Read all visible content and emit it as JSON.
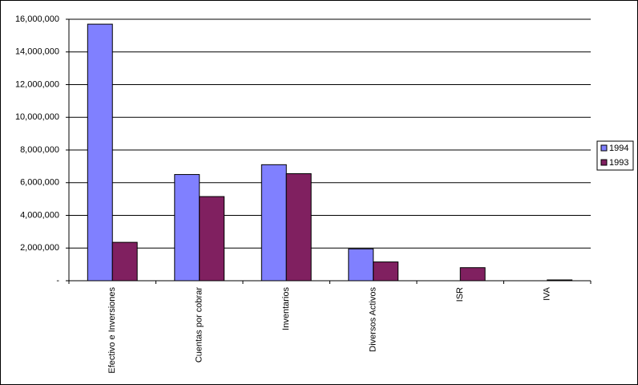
{
  "chart_data": {
    "type": "bar",
    "categories": [
      "Efectivo e Inversiones",
      "Cuentas por cobrar",
      "Inventarios",
      "Diversos Activos",
      "ISR",
      "IVA"
    ],
    "series": [
      {
        "name": "1994",
        "color": "#8080ff",
        "values": [
          15700000,
          6500000,
          7100000,
          1950000,
          0,
          0
        ]
      },
      {
        "name": "1993",
        "color": "#802060",
        "values": [
          2350000,
          5150000,
          6550000,
          1150000,
          800000,
          50000
        ]
      }
    ],
    "ylim": [
      0,
      16000000
    ],
    "yticks": [
      {
        "value": 0,
        "label": "-"
      },
      {
        "value": 2000000,
        "label": "2,000,000"
      },
      {
        "value": 4000000,
        "label": "4,000,000"
      },
      {
        "value": 6000000,
        "label": "6,000,000"
      },
      {
        "value": 8000000,
        "label": "8,000,000"
      },
      {
        "value": 10000000,
        "label": "10,000,000"
      },
      {
        "value": 12000000,
        "label": "12,000,000"
      },
      {
        "value": 14000000,
        "label": "14,000,000"
      },
      {
        "value": 16000000,
        "label": "16,000,000"
      }
    ],
    "grid": true,
    "legend": "right"
  }
}
